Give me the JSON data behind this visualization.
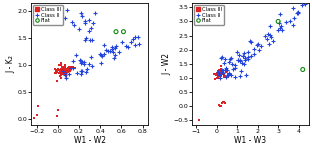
{
  "left": {
    "xlabel": "W1 - W2",
    "ylabel": "J - K₂",
    "xlim": [
      -0.25,
      0.85
    ],
    "ylim": [
      -0.1,
      2.15
    ],
    "xticks": [
      -0.2,
      0.0,
      0.2,
      0.4,
      0.6,
      0.8
    ],
    "yticks": [
      0.0,
      0.5,
      1.0,
      1.5,
      2.0
    ]
  },
  "right": {
    "xlabel": "W1 - W3",
    "ylabel": "J - W2",
    "xlim": [
      -1.2,
      4.5
    ],
    "ylim": [
      -0.65,
      3.65
    ],
    "xticks": [
      -1,
      0,
      1,
      2,
      3,
      4
    ],
    "yticks": [
      -0.5,
      0.0,
      0.5,
      1.0,
      1.5,
      2.0,
      2.5,
      3.0,
      3.5
    ]
  },
  "classIII_color": "#dd2222",
  "classII_color": "#2244dd",
  "flat_color": "#118811",
  "class_labels": [
    "Class III",
    "Class II",
    "Flat"
  ]
}
